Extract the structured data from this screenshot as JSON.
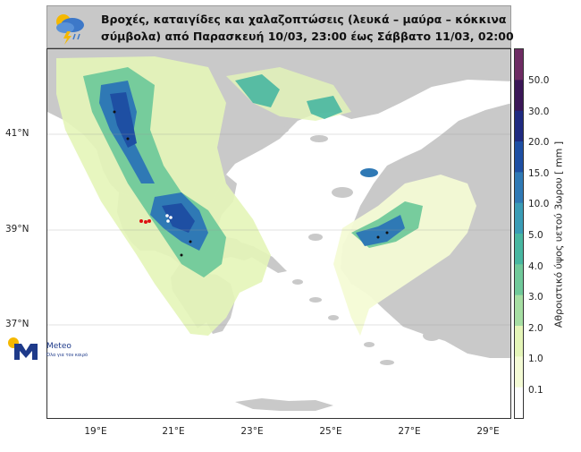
{
  "title": {
    "line1": "Βροχές, καταιγίδες και χαλαζοπτώσεις (λευκά – μαύρα – κόκκινα",
    "line2": "σύμβολα) από Παρασκευή 10/03, 23:00 έως Σάββατο 11/03, 02:00"
  },
  "map": {
    "y_ticks": [
      "41°N",
      "39°N",
      "37°N"
    ],
    "x_ticks": [
      "19°E",
      "21°E",
      "23°E",
      "25°E",
      "27°E",
      "29°E"
    ]
  },
  "colorbar": {
    "title": "Αθροιστικό ύψος υετού 3ωρου [ mm ]",
    "labels": [
      "50.0",
      "30.0",
      "20.0",
      "15.0",
      "10.0",
      "5.0",
      "4.0",
      "3.0",
      "2.0",
      "1.0",
      "0.1"
    ],
    "colors": [
      "#6d2b63",
      "#3a1657",
      "#1f2a80",
      "#1e4fa3",
      "#2f79b5",
      "#3a9cb6",
      "#48b7a1",
      "#70c99a",
      "#a6dea3",
      "#e4f5b8",
      "#f4fbd5",
      "#ffffff"
    ]
  },
  "brand": {
    "name": "Meteo",
    "tagline": "Όλα για τον καιρό",
    "color": "#1e3a8a"
  },
  "colors": {
    "land": "#c9c9c9",
    "sea": "#ffffff"
  }
}
